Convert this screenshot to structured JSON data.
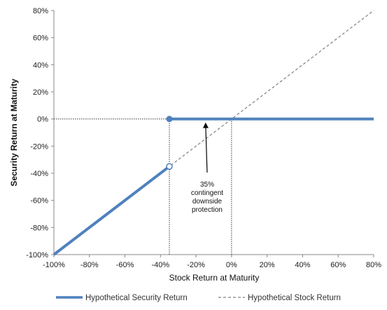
{
  "chart_data": {
    "type": "line",
    "title": "",
    "xlabel": "Stock Return at Maturity",
    "ylabel": "Security Return at Maturity",
    "xlim": [
      -100,
      80
    ],
    "ylim": [
      -100,
      80
    ],
    "x_ticks": [
      "-100%",
      "-80%",
      "-60%",
      "-40%",
      "-20%",
      "0%",
      "20%",
      "40%",
      "60%",
      "80%"
    ],
    "y_ticks": [
      "80%",
      "60%",
      "40%",
      "20%",
      "0%",
      "-20%",
      "-40%",
      "-60%",
      "-80%",
      "-100%"
    ],
    "x_tick_values": [
      -100,
      -80,
      -60,
      -40,
      -20,
      0,
      20,
      40,
      60,
      80
    ],
    "y_tick_values": [
      80,
      60,
      40,
      20,
      0,
      -20,
      -40,
      -60,
      -80,
      -100
    ],
    "grid": false,
    "series": [
      {
        "name": "Hypothetical Security Return",
        "color": "#4f81bd",
        "style": "solid",
        "segments": [
          {
            "x": [
              -100,
              -35
            ],
            "y": [
              -100,
              -35
            ],
            "end_marker": "open"
          },
          {
            "x": [
              -35,
              80
            ],
            "y": [
              0,
              0
            ],
            "start_marker": "filled"
          }
        ]
      },
      {
        "name": "Hypothetical Stock Return",
        "color": "#808080",
        "style": "dashed",
        "x": [
          -100,
          80
        ],
        "y": [
          -100,
          80
        ]
      }
    ],
    "reference_lines": [
      {
        "type": "horizontal",
        "y": 0,
        "x_from": -100,
        "x_to": -35,
        "style": "dotted"
      },
      {
        "type": "vertical",
        "x": -35,
        "y_from": -100,
        "y_to": 0,
        "style": "dotted"
      },
      {
        "type": "vertical",
        "x": 0,
        "y_from": -100,
        "y_to": 0,
        "style": "dotted"
      }
    ],
    "annotation": {
      "lines": [
        "35%",
        "contingent",
        "downside",
        "protection"
      ],
      "arrow_to": {
        "x": -15,
        "y": 0
      }
    },
    "legend": {
      "placement": "bottom"
    }
  }
}
